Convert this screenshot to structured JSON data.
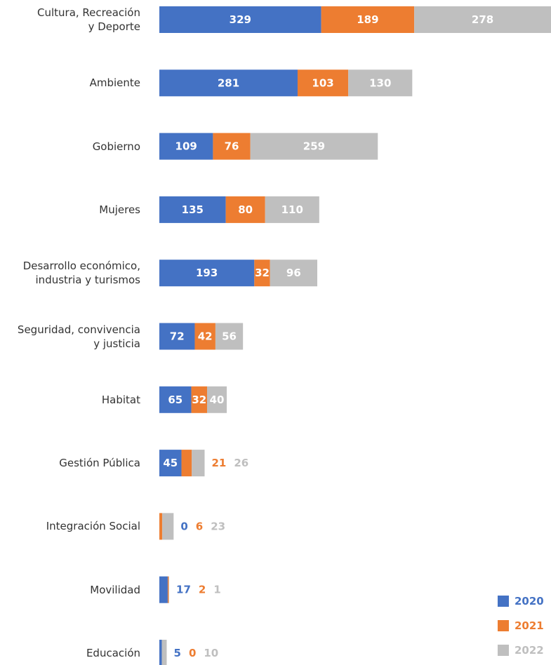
{
  "chart_data": {
    "type": "bar",
    "orientation": "horizontal",
    "stacked": true,
    "categories": [
      "Cultura, Recreación\ny Deporte",
      "Ambiente",
      "Gobierno",
      "Mujeres",
      "Desarrollo económico,\nindustria y turismos",
      "Seguridad, convivencia\ny justicia",
      "Habitat",
      "Gestión Pública",
      "Integración Social",
      "Movilidad",
      "Educación"
    ],
    "series": [
      {
        "name": "2020",
        "color": "#4472c4",
        "values": [
          329,
          281,
          109,
          135,
          193,
          72,
          65,
          45,
          0,
          17,
          5
        ]
      },
      {
        "name": "2021",
        "color": "#ed7d31",
        "values": [
          189,
          103,
          76,
          80,
          32,
          42,
          32,
          21,
          6,
          2,
          0
        ]
      },
      {
        "name": "2022",
        "color": "#bfbfbf",
        "values": [
          278,
          130,
          259,
          110,
          96,
          56,
          40,
          26,
          23,
          1,
          10
        ]
      }
    ],
    "legend": "bottom-right"
  }
}
